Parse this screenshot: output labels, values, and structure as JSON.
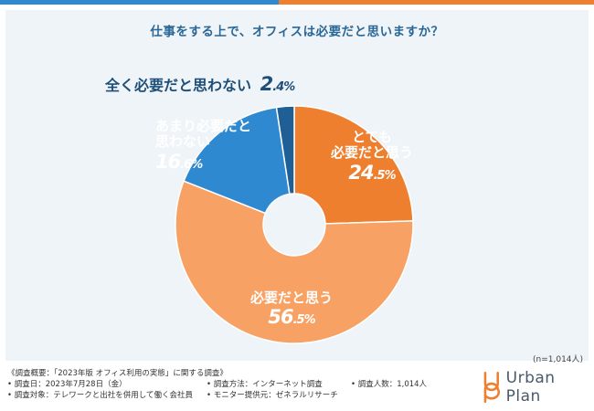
{
  "colors": {
    "bar_blue": "#2f89d1",
    "bar_orange": "#ee7f2e",
    "panel_bg": "#eef4f8",
    "title": "#2a6796"
  },
  "chart_data": {
    "type": "pie",
    "title": "仕事をする上で、オフィスは必要だと思いますか？",
    "sample_size": "(n=1,014人)",
    "series": [
      {
        "name": "とても必要だと思う",
        "value": 24.5,
        "color": "#ee7f2e"
      },
      {
        "name": "必要だと思う",
        "value": 56.5,
        "color": "#f7a264"
      },
      {
        "name": "あまり必要だと思わない",
        "value": 16.6,
        "color": "#2f89d1"
      },
      {
        "name": "全く必要だと思わない",
        "value": 2.4,
        "color": "#1f5f95"
      }
    ],
    "labels": {
      "very_line1": "とても",
      "very_line2": "必要だと思う",
      "very_int": "24",
      "very_dec": ".5%",
      "needed": "必要だと思う",
      "needed_int": "56",
      "needed_dec": ".5%",
      "notmuch_line1": "あまり必要だと",
      "notmuch_line2": "思わない",
      "notmuch_int": "16",
      "notmuch_dec": ".6%",
      "notatall": "全く必要だと思わない",
      "notatall_int": "2",
      "notatall_dec": ".4%"
    }
  },
  "footer": {
    "line1": "《調査概要：「2023年版 オフィス利用の実態」に関する調査》",
    "date": "• 調査日：2023年7月28日（金）",
    "method": "• 調査方法：インターネット調査",
    "count": "• 調査人数：1,014人",
    "target": "• 調査対象：テレワークと出社を併用して働く会社員",
    "provider": "• モニター提供元：ゼネラルリサーチ"
  },
  "logo": {
    "icon": "urbanplan-logo-icon",
    "name": "Urban Plan"
  }
}
